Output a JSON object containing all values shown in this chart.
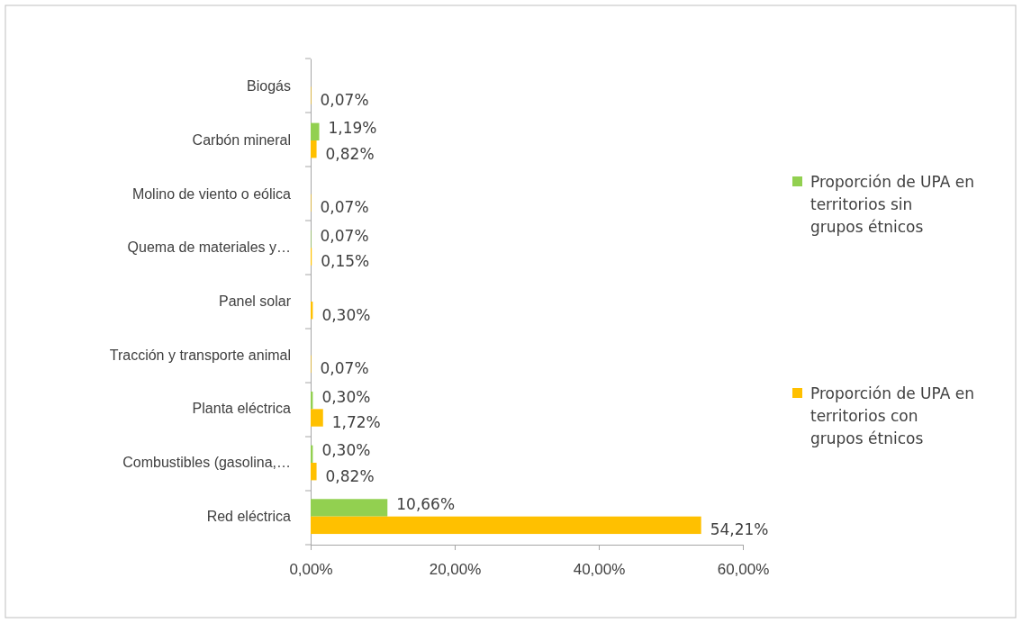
{
  "chart_data": {
    "type": "bar",
    "orientation": "horizontal",
    "categories": [
      "Biogás",
      "Carbón mineral",
      "Molino de viento o eólica",
      "Quema de materiales y…",
      "Panel solar",
      "Tracción y transporte animal",
      "Planta eléctrica",
      "Combustibles (gasolina,…",
      "Red eléctrica"
    ],
    "series": [
      {
        "name": "Proporción de UPA en territorios sin grupos étnicos",
        "color": "#92d050",
        "values": [
          0,
          1.19,
          0,
          0.07,
          0,
          0,
          0.3,
          0.3,
          10.66
        ],
        "value_labels": [
          null,
          "1,19%",
          null,
          "0,07%",
          null,
          null,
          "0,30%",
          "0,30%",
          "10,66%"
        ]
      },
      {
        "name": "Proporción de UPA en territorios con grupos étnicos",
        "color": "#ffc000",
        "values": [
          0.07,
          0.82,
          0.07,
          0.15,
          0.3,
          0.07,
          1.72,
          0.82,
          54.21
        ],
        "value_labels": [
          "0,07%",
          "0,82%",
          "0,07%",
          "0,15%",
          "0,30%",
          "0,07%",
          "1,72%",
          "0,82%",
          "54,21%"
        ]
      }
    ],
    "xlim": [
      0,
      60
    ],
    "xticks": [
      {
        "value": 0,
        "label": "0,00%"
      },
      {
        "value": 20,
        "label": "20,00%"
      },
      {
        "value": 40,
        "label": "40,00%"
      },
      {
        "value": 60,
        "label": "60,00%"
      }
    ],
    "grid": false,
    "legend": "right"
  }
}
